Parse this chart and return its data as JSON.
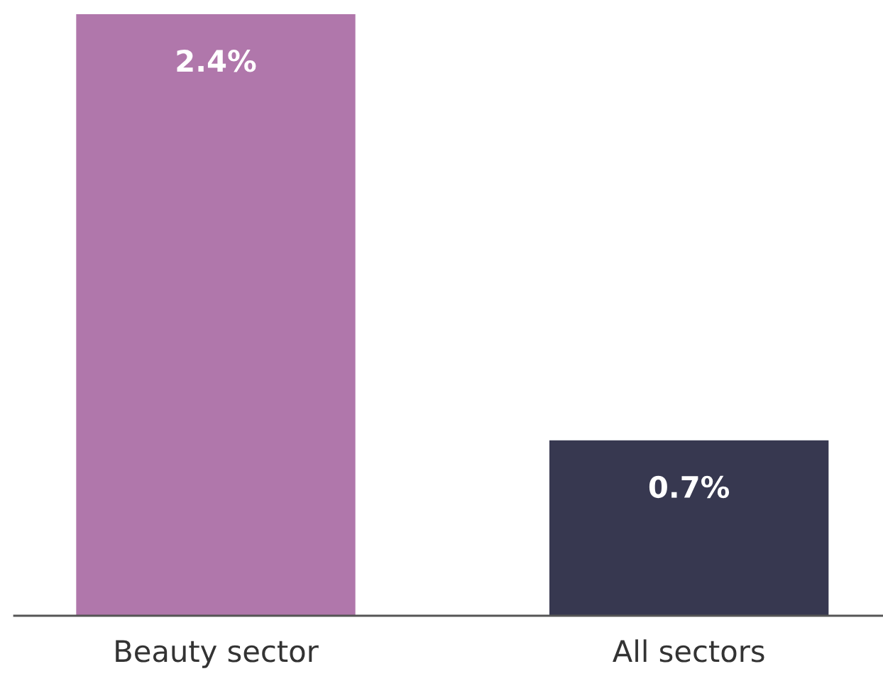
{
  "chart_data": {
    "type": "bar",
    "categories": [
      "Beauty sector",
      "All sectors"
    ],
    "values": [
      2.4,
      0.7
    ],
    "colors": [
      "#b077ab",
      "#373850"
    ],
    "value_labels": [
      "2.4%",
      "0.7%"
    ],
    "grid": false,
    "legend": false
  }
}
